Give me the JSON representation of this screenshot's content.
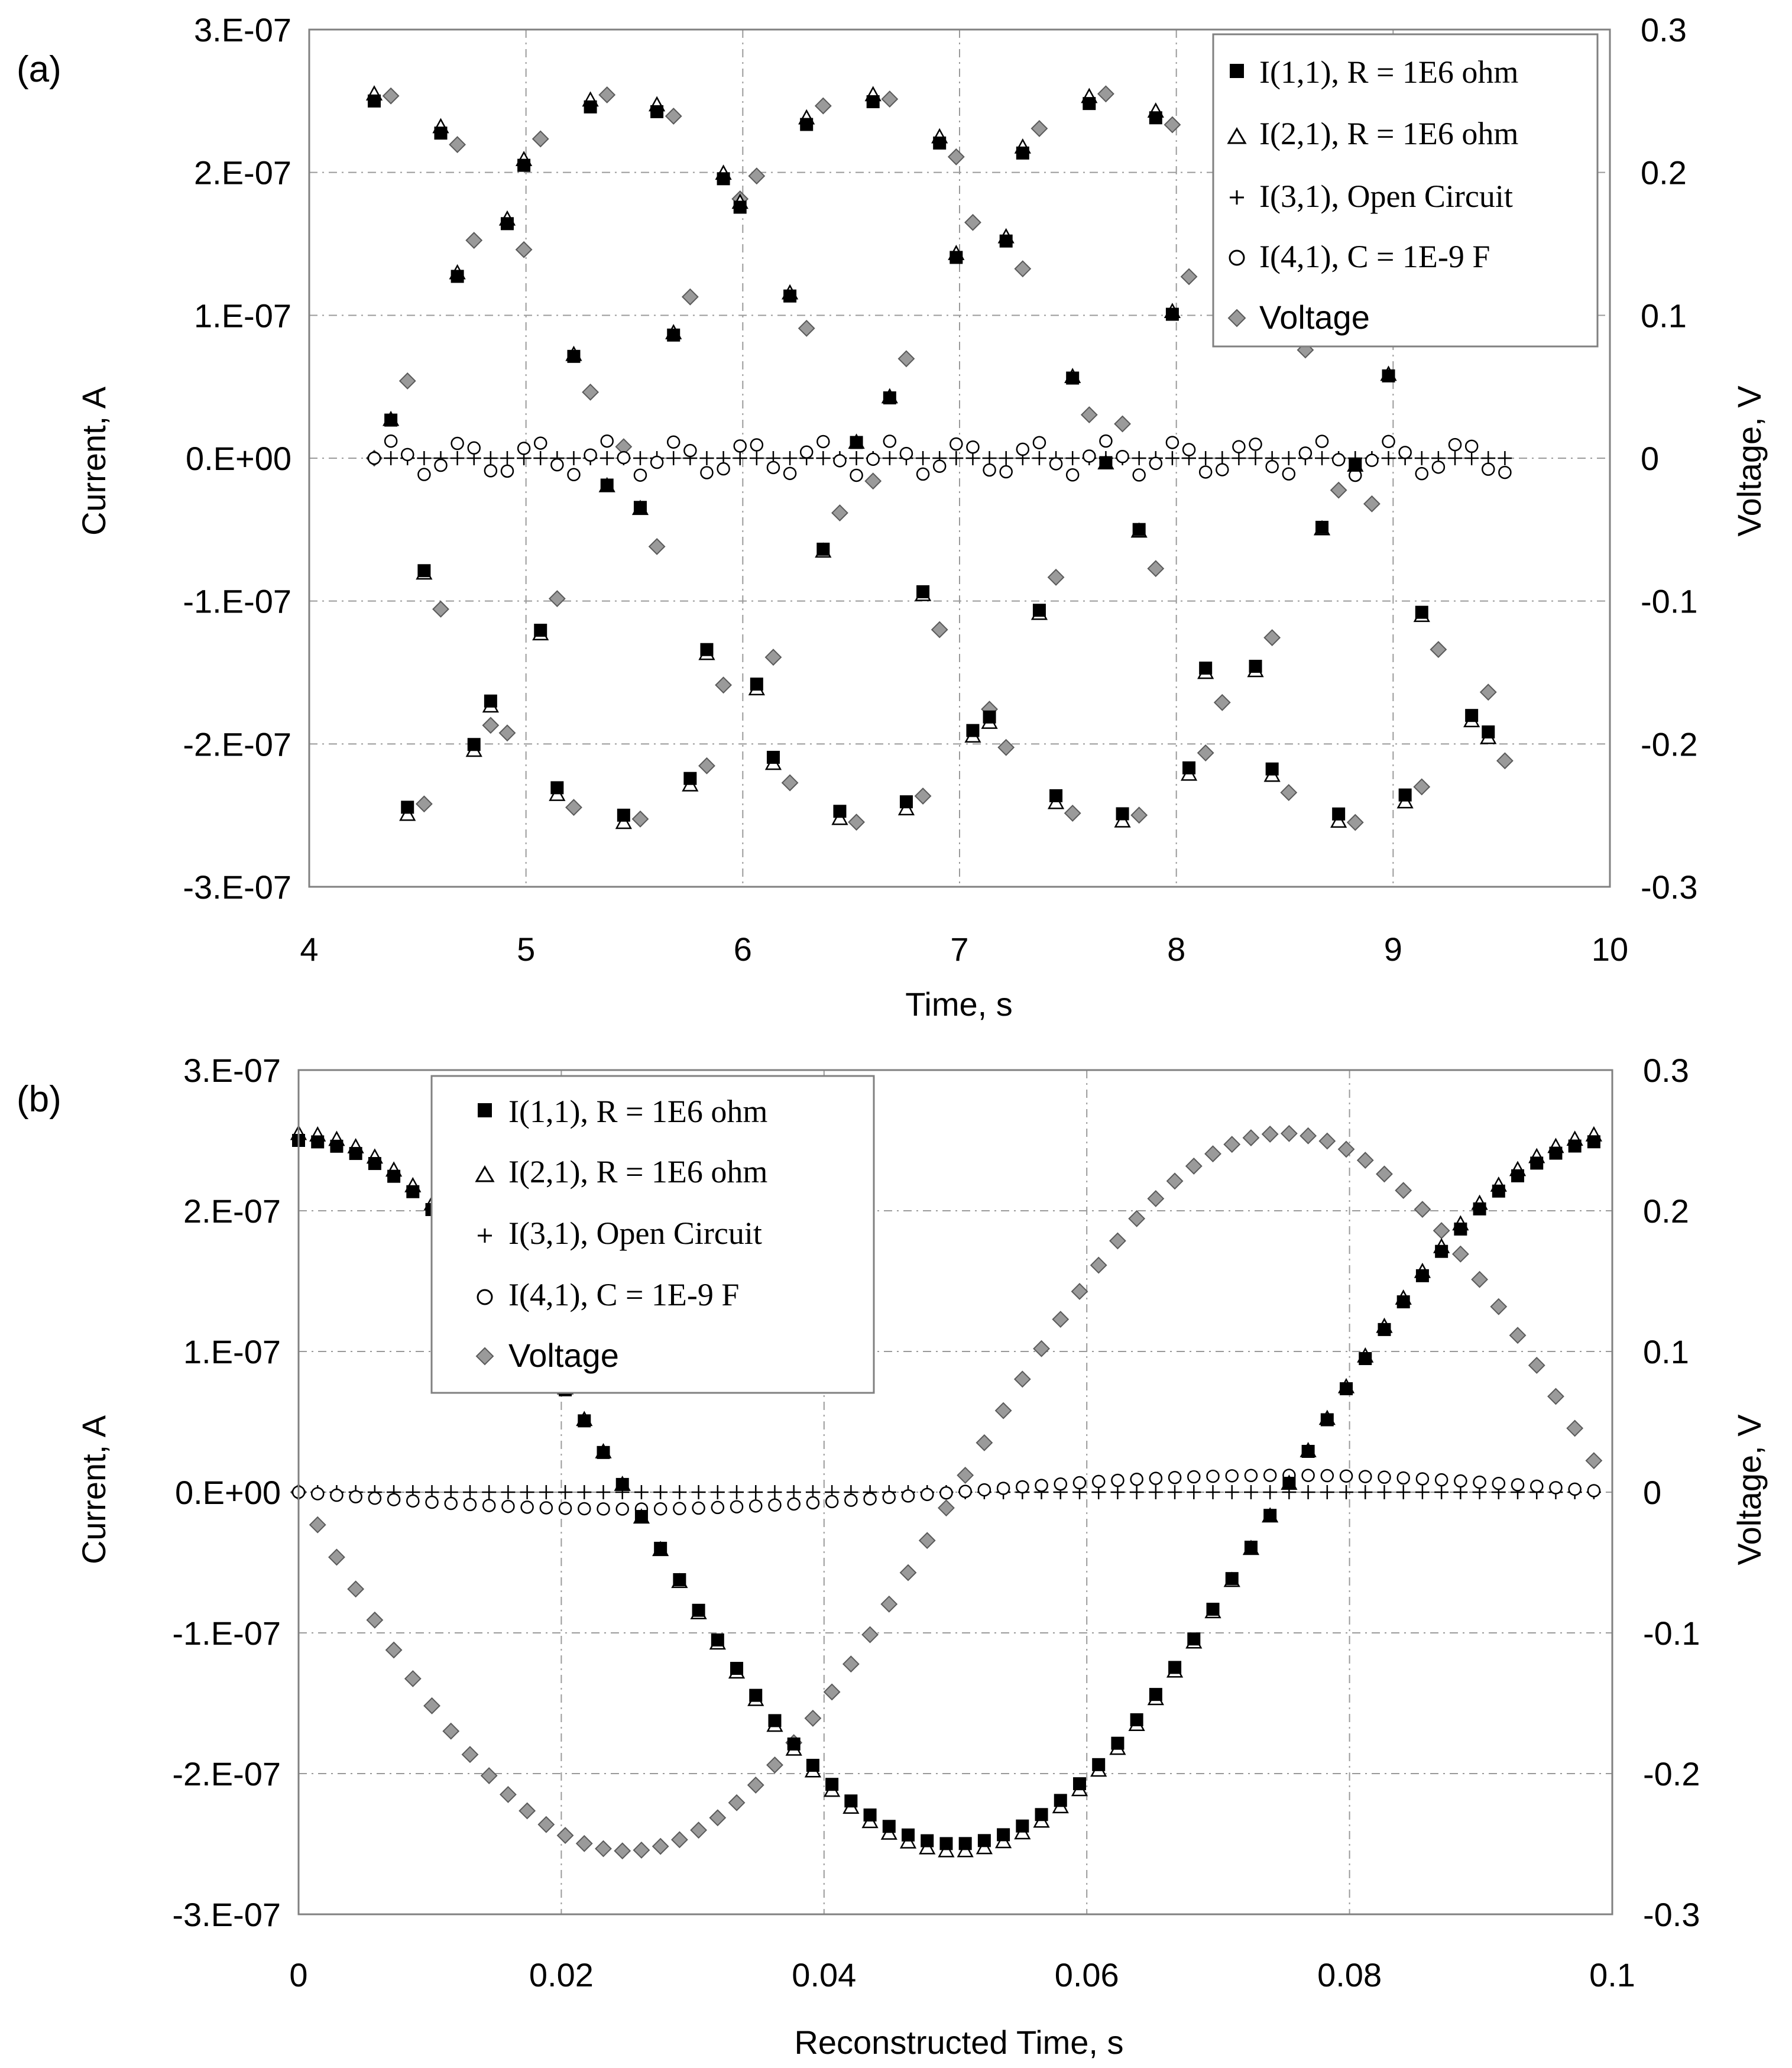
{
  "chart_data": [
    {
      "panel_label": "(a)",
      "type": "scatter",
      "xlabel": "Time, s",
      "ylabel": "Current, A",
      "y2label": "Voltage, V",
      "xlim": [
        4,
        10
      ],
      "ylim": [
        -3e-07,
        3e-07
      ],
      "y2lim": [
        -0.3,
        0.3
      ],
      "xticks": [
        "4",
        "5",
        "6",
        "7",
        "8",
        "9",
        "10"
      ],
      "yticks": [
        "3.E-07",
        "2.E-07",
        "1.E-07",
        "0.E+00",
        "-1.E-07",
        "-2.E-07",
        "-3.E-07"
      ],
      "y2ticks": [
        "0.3",
        "0.2",
        "0.1",
        "0",
        "-0.1",
        "-0.2",
        "-0.3"
      ],
      "grid": true,
      "legend_position": "top-right",
      "series": [
        {
          "name": "I(1,1), R = 1E6 ohm",
          "marker": "filled-square",
          "axis": "left",
          "sine": {
            "t0": 4.3,
            "dt": 0.0767,
            "n": 69,
            "amp": 2.5e-07,
            "period": 0.1,
            "phase": -0.025
          }
        },
        {
          "name": "I(2,1), R = 1E6 ohm",
          "marker": "open-triangle",
          "axis": "left",
          "sine": {
            "t0": 4.3,
            "dt": 0.0767,
            "n": 69,
            "amp": 2.55e-07,
            "period": 0.1,
            "phase": -0.025
          }
        },
        {
          "name": "I(3,1), Open Circuit",
          "marker": "plus",
          "axis": "left",
          "sine": {
            "t0": 4.3,
            "dt": 0.0767,
            "n": 69,
            "amp": 0,
            "period": 0.1,
            "phase": 0
          }
        },
        {
          "name": "I(4,1), C = 1E-9 F",
          "marker": "open-circle",
          "axis": "left",
          "sine": {
            "t0": 4.3,
            "dt": 0.0767,
            "n": 69,
            "amp": 1.2e-08,
            "period": 0.1,
            "phase": -0.05
          }
        },
        {
          "name": "Voltage",
          "marker": "gray-diamond",
          "axis": "right",
          "sine": {
            "t0": 4.3,
            "dt": 0.0767,
            "n": 69,
            "amp": 0.255,
            "period": 0.1,
            "phase": -0.05
          }
        }
      ]
    },
    {
      "panel_label": "(b)",
      "type": "scatter",
      "xlabel": "Reconstructed Time, s",
      "ylabel": "Current, A",
      "y2label": "Voltage, V",
      "xlim": [
        0,
        0.1
      ],
      "ylim": [
        -3e-07,
        3e-07
      ],
      "y2lim": [
        -0.3,
        0.3
      ],
      "xticks": [
        "0",
        "0.02",
        "0.04",
        "0.06",
        "0.08",
        "0.1"
      ],
      "yticks": [
        "3.E-07",
        "2.E-07",
        "1.E-07",
        "0.E+00",
        "-1.E-07",
        "-2.E-07",
        "-3.E-07"
      ],
      "y2ticks": [
        "0.3",
        "0.2",
        "0.1",
        "0",
        "-0.1",
        "-0.2",
        "-0.3"
      ],
      "grid": true,
      "legend_position": "top-left",
      "series": [
        {
          "name": "I(1,1), R = 1E6 ohm",
          "marker": "filled-square",
          "axis": "left",
          "sine": {
            "t0": 0,
            "dt": 0.00145,
            "n": 69,
            "amp": 2.5e-07,
            "period": 0.1,
            "phase": -0.025
          }
        },
        {
          "name": "I(2,1), R = 1E6 ohm",
          "marker": "open-triangle",
          "axis": "left",
          "sine": {
            "t0": 0,
            "dt": 0.00145,
            "n": 69,
            "amp": 2.55e-07,
            "period": 0.1,
            "phase": -0.025
          }
        },
        {
          "name": "I(3,1), Open Circuit",
          "marker": "plus",
          "axis": "left",
          "sine": {
            "t0": 0,
            "dt": 0.00145,
            "n": 69,
            "amp": 0,
            "period": 0.1,
            "phase": 0
          }
        },
        {
          "name": "I(4,1), C = 1E-9 F",
          "marker": "open-circle",
          "axis": "left",
          "sine": {
            "t0": 0,
            "dt": 0.00145,
            "n": 69,
            "amp": 1.2e-08,
            "period": 0.1,
            "phase": -0.05
          }
        },
        {
          "name": "Voltage",
          "marker": "gray-diamond",
          "axis": "right",
          "sine": {
            "t0": 0,
            "dt": 0.00145,
            "n": 69,
            "amp": 0.255,
            "period": 0.1,
            "phase": -0.05
          }
        }
      ]
    }
  ],
  "colors": {
    "grid": "#9a9a9a",
    "axis": "#808080",
    "marker_dark": "#000000",
    "diamond_fill": "#9a9a9a",
    "diamond_stroke": "#5a5a5a"
  }
}
